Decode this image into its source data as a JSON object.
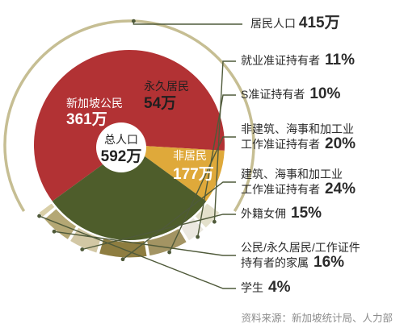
{
  "chart_data": {
    "type": "pie",
    "total": {
      "name": "总人口",
      "value_label": "592万",
      "value": 592
    },
    "residents": {
      "name": "居民人口",
      "value_label": "415万",
      "value": 415
    },
    "segments": [
      {
        "name": "新加坡公民",
        "value_label": "361万",
        "value": 361,
        "color": "#b23234"
      },
      {
        "name": "永久居民",
        "value_label": "54万",
        "value": 54,
        "color": "#dfa93a"
      },
      {
        "name": "非居民",
        "value_label": "177万",
        "value": 177,
        "color": "#4e5d2b"
      }
    ],
    "breakdown_parent": "非居民",
    "breakdown": [
      {
        "name_lines": [
          "就业准证持有者"
        ],
        "pct_label": "11%",
        "pct": 11,
        "color": "#e3e0cb"
      },
      {
        "name_lines": [
          "S准证持有者"
        ],
        "pct_label": "10%",
        "pct": 10,
        "color": "#ebe8e0"
      },
      {
        "name_lines": [
          "非建筑、海事和加工业",
          "工作准证持有者"
        ],
        "pct_label": "20%",
        "pct": 20,
        "color": "#a39463"
      },
      {
        "name_lines": [
          "建筑、海事和加工业",
          "工作准证持有者"
        ],
        "pct_label": "24%",
        "pct": 24,
        "color": "#8e7d40"
      },
      {
        "name_lines": [
          "外籍女佣"
        ],
        "pct_label": "15%",
        "pct": 15,
        "color": "#d2c7a4"
      },
      {
        "name_lines": [
          "公民/永久居民/工作证件",
          "持有者的家属"
        ],
        "pct_label": "16%",
        "pct": 16,
        "color": "#b4a774"
      },
      {
        "name_lines": [
          "学生"
        ],
        "pct_label": "4%",
        "pct": 4,
        "color": "#d9cfa8"
      }
    ],
    "source_note": "资料来源：新加坡统计局、人力部",
    "colors": {
      "ring": "#c6be93",
      "connector": "#4f5a3a",
      "center_fill": "#ffffff"
    }
  }
}
